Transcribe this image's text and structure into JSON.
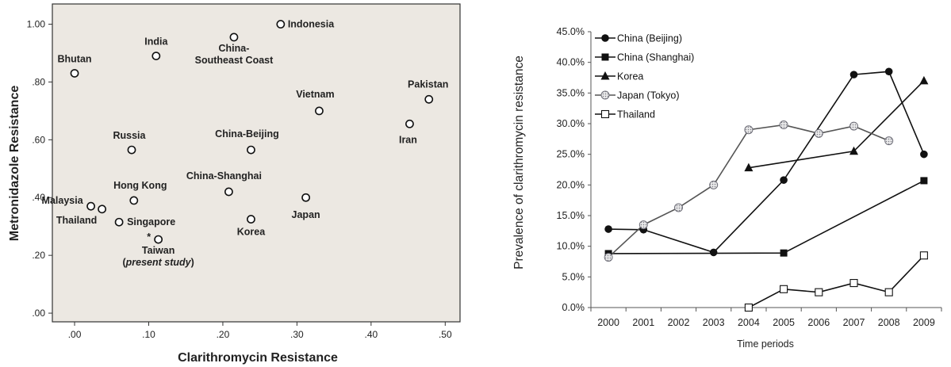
{
  "chart_data": [
    {
      "type": "scatter",
      "xlabel": "Clarithromycin Resistance",
      "ylabel": "Metronidazole Resistance",
      "xlim": [
        -0.03,
        0.52
      ],
      "ylim": [
        -0.03,
        1.07
      ],
      "xticks": [
        ".00",
        ".10",
        ".20",
        ".30",
        ".40",
        ".50"
      ],
      "xtick_values": [
        0,
        0.1,
        0.2,
        0.3,
        0.4,
        0.5
      ],
      "yticks": [
        ".00",
        ".20",
        ".40",
        ".60",
        ".80",
        "1.00"
      ],
      "ytick_values": [
        0,
        0.2,
        0.4,
        0.6,
        0.8,
        1.0
      ],
      "background": "#ece8e2",
      "points": [
        {
          "label": "Bhutan",
          "x": 0.0,
          "y": 0.83
        },
        {
          "label": "India",
          "x": 0.11,
          "y": 0.89
        },
        {
          "label": "China-",
          "label2": "Southeast Coast",
          "x": 0.215,
          "y": 0.955
        },
        {
          "label": "Indonesia",
          "x": 0.278,
          "y": 1.0
        },
        {
          "label": "Pakistan",
          "x": 0.478,
          "y": 0.74
        },
        {
          "label": "Vietnam",
          "x": 0.33,
          "y": 0.7
        },
        {
          "label": "Iran",
          "x": 0.452,
          "y": 0.655
        },
        {
          "label": "Russia",
          "x": 0.077,
          "y": 0.565
        },
        {
          "label": "China-Beijing",
          "x": 0.238,
          "y": 0.565
        },
        {
          "label": "China-Shanghai",
          "x": 0.208,
          "y": 0.42
        },
        {
          "label": "Hong Kong",
          "x": 0.08,
          "y": 0.39
        },
        {
          "label": "Malaysia",
          "x": 0.022,
          "y": 0.37
        },
        {
          "label": "Thailand",
          "x": 0.037,
          "y": 0.36
        },
        {
          "label": "Singapore",
          "x": 0.06,
          "y": 0.315
        },
        {
          "label": "Japan",
          "x": 0.312,
          "y": 0.4
        },
        {
          "label": "Korea",
          "x": 0.238,
          "y": 0.325
        },
        {
          "label": "Taiwan",
          "label2": "(present study)",
          "marker": "*",
          "x": 0.113,
          "y": 0.255
        }
      ]
    },
    {
      "type": "line",
      "xlabel": "Time periods",
      "ylabel": "Prevalence of clarithromycin resistance",
      "categories": [
        "2000",
        "2001",
        "2002",
        "2003",
        "2004",
        "2005",
        "2006",
        "2007",
        "2008",
        "2009"
      ],
      "yticks": [
        "0.0%",
        "5.0%",
        "10.0%",
        "15.0%",
        "20.0%",
        "25.0%",
        "30.0%",
        "35.0%",
        "40.0%",
        "45.0%"
      ],
      "ylim": [
        0,
        45
      ],
      "series": [
        {
          "name": "China (Beijing)",
          "marker": "circle-filled",
          "values": [
            12.8,
            12.7,
            null,
            9.0,
            null,
            20.8,
            null,
            38.0,
            38.5,
            25.0
          ]
        },
        {
          "name": "China (Shanghai)",
          "marker": "square-filled",
          "values": [
            8.8,
            null,
            null,
            null,
            null,
            8.9,
            null,
            null,
            null,
            20.7
          ]
        },
        {
          "name": "Korea",
          "marker": "triangle-filled",
          "values": [
            null,
            null,
            null,
            null,
            22.8,
            null,
            null,
            25.5,
            null,
            37.0
          ]
        },
        {
          "name": "Japan (Tokyo)",
          "marker": "circle-dotted",
          "values": [
            8.2,
            13.5,
            16.3,
            20.0,
            29.0,
            29.8,
            28.4,
            29.6,
            27.2,
            null
          ]
        },
        {
          "name": "Thailand",
          "marker": "square-open",
          "values": [
            null,
            null,
            null,
            null,
            0.0,
            3.0,
            2.5,
            4.0,
            2.5,
            8.5
          ]
        }
      ]
    }
  ]
}
